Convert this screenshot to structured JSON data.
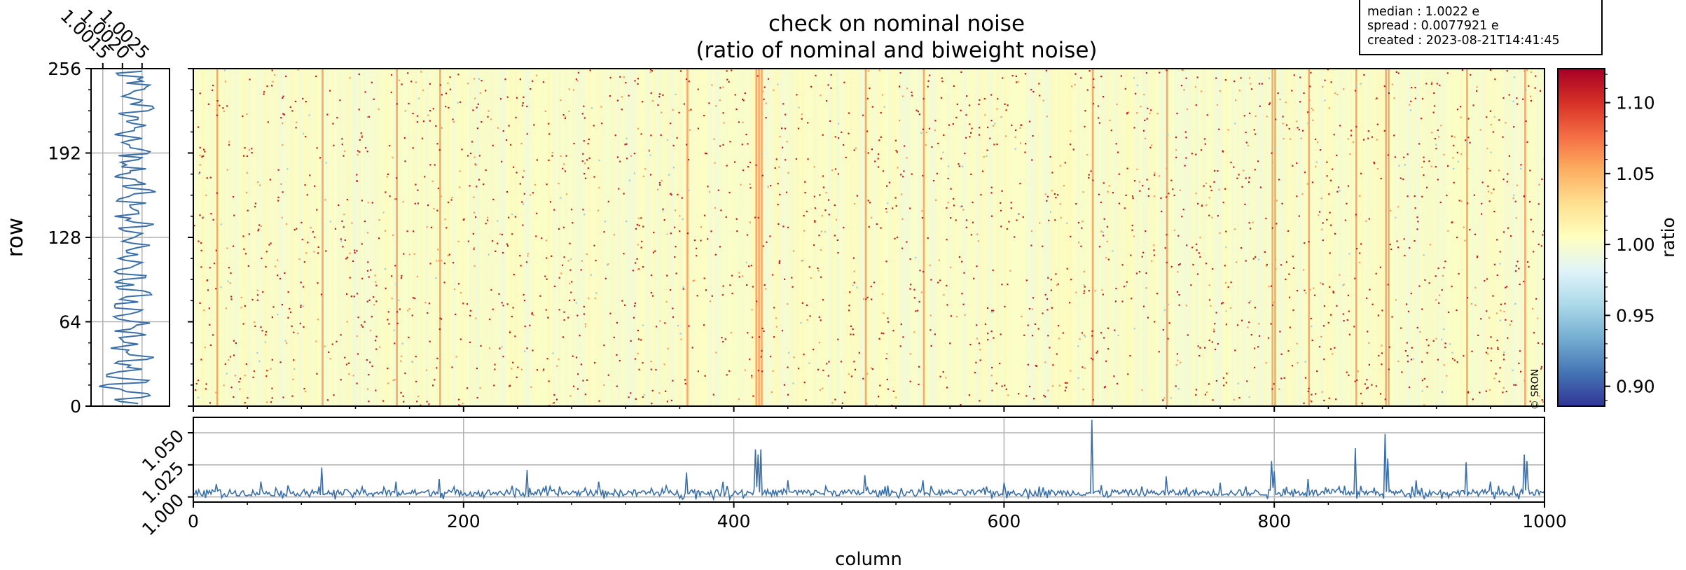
{
  "figure": {
    "title_line1": "check on nominal noise",
    "title_line2": "(ratio of nominal and biweight noise)",
    "info_box": [
      "median : 1.0022 e",
      "spread : 0.0077921 e",
      "created : 2023-08-21T14:41:45"
    ],
    "watermark": "© SRON"
  },
  "colors": {
    "line": "#3a6fa8",
    "grid": "#b0b0b0",
    "colormap": [
      "#313695",
      "#4575b4",
      "#74add1",
      "#abd9e9",
      "#e0f3f8",
      "#ffffbf",
      "#fee090",
      "#fdae61",
      "#f46d43",
      "#d73027",
      "#a50026"
    ]
  },
  "chart_data": [
    {
      "type": "heatmap",
      "id": "main_image",
      "xlim": [
        0,
        1000
      ],
      "ylim": [
        0,
        256
      ],
      "ylabel": "row",
      "yticks": [
        0,
        64,
        128,
        192,
        256
      ],
      "ytick_labels": [
        "0",
        "64",
        "128",
        "192",
        "256"
      ],
      "colorbar": {
        "label": "ratio",
        "range": [
          0.886,
          1.124
        ],
        "ticks": [
          0.9,
          0.95,
          1.0,
          1.05,
          1.1
        ],
        "tick_labels": [
          "0.90",
          "0.95",
          "1.00",
          "1.05",
          "1.10"
        ]
      },
      "bright_columns": [
        17,
        95,
        150,
        182,
        365,
        416,
        418,
        420,
        497,
        540,
        665,
        720,
        798,
        800,
        825,
        860,
        882,
        884,
        942,
        985
      ],
      "background_value": 1.0,
      "hot_pixel_value": 1.11
    },
    {
      "type": "line",
      "id": "row_profile",
      "xlim": [
        1.0012,
        1.0032
      ],
      "xticks": [
        1.0015,
        1.002,
        1.0025
      ],
      "xtick_labels": [
        "1.0015",
        "1.0020",
        "1.0025"
      ],
      "ylim": [
        0,
        256
      ],
      "points": [
        [
          1.0024,
          2
        ],
        [
          1.0018,
          5
        ],
        [
          1.0027,
          8
        ],
        [
          1.0021,
          11
        ],
        [
          1.0014,
          15
        ],
        [
          1.0026,
          18
        ],
        [
          1.002,
          21
        ],
        [
          1.0016,
          24
        ],
        [
          1.0025,
          28
        ],
        [
          1.0022,
          31
        ],
        [
          1.0019,
          34
        ],
        [
          1.0028,
          37
        ],
        [
          1.0021,
          41
        ],
        [
          1.0017,
          44
        ],
        [
          1.0024,
          47
        ],
        [
          1.002,
          50
        ],
        [
          1.0026,
          54
        ],
        [
          1.0018,
          57
        ],
        [
          1.0023,
          60
        ],
        [
          1.0027,
          63
        ],
        [
          1.0019,
          66
        ],
        [
          1.0022,
          70
        ],
        [
          1.0025,
          73
        ],
        [
          1.0018,
          76
        ],
        [
          1.0024,
          79
        ],
        [
          1.0021,
          83
        ],
        [
          1.0027,
          86
        ],
        [
          1.0019,
          89
        ],
        [
          1.0023,
          92
        ],
        [
          1.002,
          96
        ],
        [
          1.0026,
          99
        ],
        [
          1.0018,
          102
        ],
        [
          1.0022,
          105
        ],
        [
          1.0025,
          109
        ],
        [
          1.0019,
          112
        ],
        [
          1.0024,
          115
        ],
        [
          1.0021,
          118
        ],
        [
          1.0027,
          122
        ],
        [
          1.002,
          125
        ],
        [
          1.0023,
          128
        ],
        [
          1.0025,
          131
        ],
        [
          1.0019,
          135
        ],
        [
          1.0028,
          138
        ],
        [
          1.0021,
          141
        ],
        [
          1.0018,
          144
        ],
        [
          1.0024,
          148
        ],
        [
          1.0022,
          151
        ],
        [
          1.0026,
          154
        ],
        [
          1.0019,
          157
        ],
        [
          1.0023,
          161
        ],
        [
          1.0027,
          164
        ],
        [
          1.002,
          167
        ],
        [
          1.0024,
          170
        ],
        [
          1.0018,
          174
        ],
        [
          1.0022,
          177
        ],
        [
          1.0026,
          180
        ],
        [
          1.0021,
          183
        ],
        [
          1.0024,
          187
        ],
        [
          1.0019,
          190
        ],
        [
          1.0027,
          193
        ],
        [
          1.0022,
          196
        ],
        [
          1.002,
          200
        ],
        [
          1.0025,
          203
        ],
        [
          1.0018,
          206
        ],
        [
          1.0023,
          209
        ],
        [
          1.0026,
          213
        ],
        [
          1.0021,
          216
        ],
        [
          1.0024,
          219
        ],
        [
          1.0019,
          222
        ],
        [
          1.0028,
          226
        ],
        [
          1.0022,
          229
        ],
        [
          1.0025,
          232
        ],
        [
          1.002,
          235
        ],
        [
          1.0023,
          239
        ],
        [
          1.0026,
          242
        ],
        [
          1.0021,
          245
        ],
        [
          1.0024,
          248
        ],
        [
          1.0019,
          251
        ],
        [
          1.0025,
          254
        ]
      ]
    },
    {
      "type": "line",
      "id": "column_profile",
      "xlabel": "column",
      "xlim": [
        0,
        1000
      ],
      "xticks": [
        0,
        200,
        400,
        600,
        800,
        1000
      ],
      "xtick_labels": [
        "0",
        "200",
        "400",
        "600",
        "800",
        "1000"
      ],
      "ylim": [
        0.996,
        1.062
      ],
      "yticks": [
        1.0,
        1.025,
        1.05
      ],
      "ytick_labels": [
        "1.000",
        "1.025",
        "1.050"
      ],
      "baseline": 1.003,
      "noise": 0.005,
      "peaks": [
        [
          17,
          1.01
        ],
        [
          50,
          1.012
        ],
        [
          95,
          1.023
        ],
        [
          150,
          1.012
        ],
        [
          182,
          1.014
        ],
        [
          247,
          1.021
        ],
        [
          300,
          1.012
        ],
        [
          365,
          1.019
        ],
        [
          392,
          1.012
        ],
        [
          416,
          1.037
        ],
        [
          418,
          1.033
        ],
        [
          420,
          1.037
        ],
        [
          440,
          1.013
        ],
        [
          497,
          1.017
        ],
        [
          540,
          1.013
        ],
        [
          600,
          1.011
        ],
        [
          665,
          1.06
        ],
        [
          720,
          1.016
        ],
        [
          760,
          1.011
        ],
        [
          798,
          1.028
        ],
        [
          800,
          1.02
        ],
        [
          825,
          1.014
        ],
        [
          860,
          1.038
        ],
        [
          882,
          1.049
        ],
        [
          884,
          1.03
        ],
        [
          905,
          1.013
        ],
        [
          942,
          1.027
        ],
        [
          960,
          1.012
        ],
        [
          985,
          1.033
        ],
        [
          987,
          1.028
        ]
      ]
    }
  ]
}
